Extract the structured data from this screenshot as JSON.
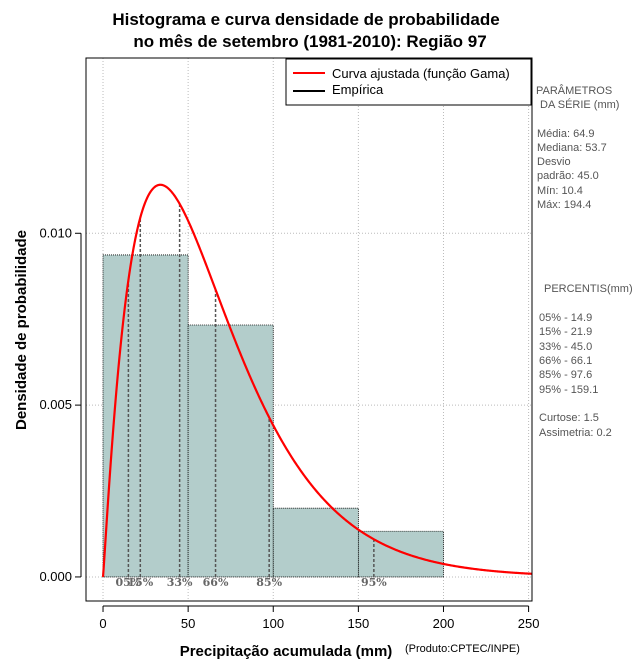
{
  "chart_data": {
    "type": "bar",
    "title_line1": "Histograma e curva densidade de probabilidade",
    "title_line2": "no mês de setembro (1981-2010): Região 97",
    "xlabel": "Precipitação acumulada (mm)",
    "xlabel_note": "(Produto:CPTEC/INPE)",
    "ylabel": "Densidade de probabilidade",
    "xlim": [
      -10,
      252
    ],
    "ylim": [
      -0.0007,
      0.0151
    ],
    "x_ticks": [
      0,
      50,
      100,
      150,
      200,
      250
    ],
    "x_tick_labels": [
      "0",
      "50",
      "100",
      "150",
      "200",
      "250"
    ],
    "y_ticks": [
      0,
      0.005,
      0.01
    ],
    "y_tick_labels": [
      "0.000",
      "0.005",
      "0.010"
    ],
    "grid": true,
    "bins": [
      {
        "from": 0,
        "to": 50,
        "value": 0.00937
      },
      {
        "from": 50,
        "to": 100,
        "value": 0.00733
      },
      {
        "from": 100,
        "to": 150,
        "value": 0.002
      },
      {
        "from": 150,
        "to": 200,
        "value": 0.00133
      }
    ],
    "gamma_fit": {
      "shape": 2.08,
      "scale": 31.2
    },
    "percentile_lines": [
      14.9,
      21.9,
      45.0,
      66.1,
      97.6,
      159.1
    ],
    "percentile_tags": [
      {
        "x": 14.9,
        "label": "05%"
      },
      {
        "x": 21.9,
        "label": "15%"
      },
      {
        "x": 45.0,
        "label": "33%"
      },
      {
        "x": 66.1,
        "label": "66%"
      },
      {
        "x": 97.6,
        "label": "85%"
      },
      {
        "x": 159.1,
        "label": "95%"
      }
    ],
    "legend": {
      "position": "top-right",
      "entries": [
        {
          "label": "Curva ajustada (função Gama)",
          "color": "#ff0000"
        },
        {
          "label": "Empírica",
          "color": "#000000"
        }
      ]
    },
    "colors": {
      "bar_fill": "#b3cdcb",
      "curve": "#ff0000",
      "grid": "#bbbbbb"
    }
  },
  "side_panel": {
    "params_title_1": "PARÂMETROS",
    "params_title_2": "DA SÉRIE (mm)",
    "stats": [
      "Média:  64.9",
      "Mediana:  53.7",
      "Desvio",
      "padrão:  45.0",
      "Mín:  10.4",
      "Máx:  194.4"
    ],
    "percentis_title": "PERCENTIS(mm)",
    "percentis": [
      "05% -  14.9",
      "15% -  21.9",
      "33% -  45.0",
      "66% -  66.1",
      "85% -  97.6",
      "95% -  159.1"
    ],
    "curtose": "Curtose:  1.5",
    "assimetria": "Assimetria:  0.2"
  }
}
